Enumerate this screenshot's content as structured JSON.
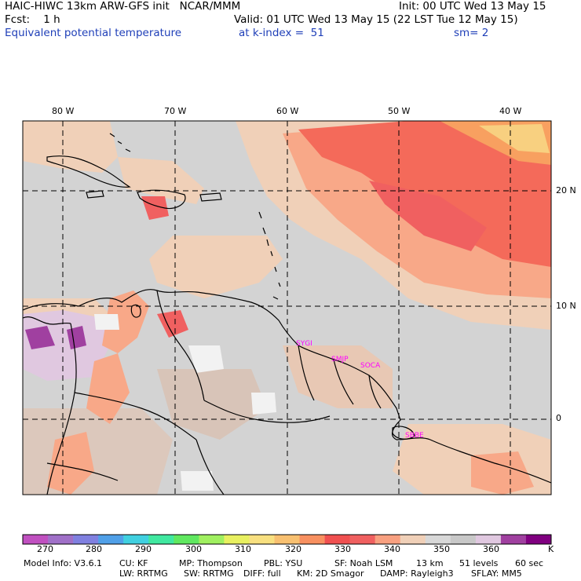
{
  "header": {
    "line1_left": "HAIC-HIWC 13km ARW-GFS init   NCAR/MMM",
    "line1_right": "Init: 00 UTC Wed 13 May 15",
    "line2_left": "Fcst:    1 h",
    "line2_right": "Valid: 01 UTC Wed 13 May 15 (22 LST Tue 12 May 15)",
    "line3_left": "Equivalent potential temperature",
    "line3_mid": "at k-index =  51",
    "line3_right": "sm= 2"
  },
  "axes": {
    "lon_labels": [
      "80 W",
      "70 W",
      "60 W",
      "50 W",
      "40 W"
    ],
    "lat_labels": [
      "20 N",
      "10 N",
      "0"
    ]
  },
  "stations": [
    "SYGI",
    "SMJP",
    "SOCA",
    "SBBE"
  ],
  "colorbar": {
    "unit": "K",
    "labels": [
      "270",
      "280",
      "290",
      "300",
      "310",
      "320",
      "330",
      "340",
      "350",
      "360"
    ],
    "colors": [
      "#c050c0",
      "#a070c8",
      "#8080e0",
      "#50a0e8",
      "#40d0e0",
      "#40e8a0",
      "#60e860",
      "#a0f060",
      "#e8f060",
      "#f8e080",
      "#f8c070",
      "#f89060",
      "#f05050",
      "#f06060",
      "#f8a080",
      "#f0d0b8",
      "#d8d8d8",
      "#c8c8c8",
      "#e0c8e0",
      "#a040a0",
      "#800080"
    ]
  },
  "footer": {
    "line1": [
      "Model Info: V3.6.1",
      "CU: KF",
      "MP: Thompson",
      "PBL: YSU",
      "SF: Noah LSM",
      "13 km",
      "51 levels",
      "60 sec"
    ],
    "line2": [
      "LW: RRTMG",
      "SW: RRTMG",
      "DIFF: full",
      "KM: 2D Smagor",
      "DAMP: Rayleigh3",
      "SFLAY: MM5"
    ]
  }
}
